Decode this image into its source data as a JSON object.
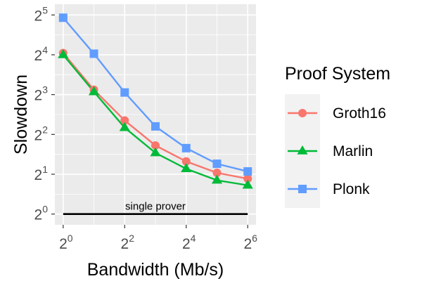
{
  "chart_data": {
    "type": "line",
    "xlabel": "Bandwidth (Mb/s)",
    "ylabel": "Slowdown",
    "x_scale": "log2",
    "y_scale": "log2",
    "xlim": [
      1,
      64
    ],
    "ylim": [
      1,
      32
    ],
    "x": [
      1,
      2,
      4,
      8,
      16,
      32,
      64
    ],
    "x_ticks": [
      {
        "value": 1,
        "base": "2",
        "exp": "0"
      },
      {
        "value": 4,
        "base": "2",
        "exp": "2"
      },
      {
        "value": 16,
        "base": "2",
        "exp": "4"
      },
      {
        "value": 64,
        "base": "2",
        "exp": "6"
      }
    ],
    "y_ticks": [
      {
        "value": 1,
        "base": "2",
        "exp": "0"
      },
      {
        "value": 2,
        "base": "2",
        "exp": "1"
      },
      {
        "value": 4,
        "base": "2",
        "exp": "2"
      },
      {
        "value": 8,
        "base": "2",
        "exp": "3"
      },
      {
        "value": 16,
        "base": "2",
        "exp": "4"
      },
      {
        "value": 32,
        "base": "2",
        "exp": "5"
      }
    ],
    "legend_title": "Proof System",
    "legend_position": "right",
    "grid": true,
    "series": [
      {
        "name": "Groth16",
        "color": "#F8766D",
        "marker": "circle",
        "values": [
          16.5,
          8.7,
          5.1,
          3.3,
          2.5,
          2.05,
          1.85
        ]
      },
      {
        "name": "Marlin",
        "color": "#00BA38",
        "marker": "triangle",
        "values": [
          16.0,
          8.4,
          4.5,
          2.9,
          2.2,
          1.8,
          1.65
        ]
      },
      {
        "name": "Plonk",
        "color": "#619CFF",
        "marker": "square",
        "values": [
          30.5,
          16.3,
          8.3,
          4.6,
          3.15,
          2.4,
          2.1
        ]
      }
    ],
    "reference_line": {
      "y": 1,
      "label": "single prover"
    }
  }
}
